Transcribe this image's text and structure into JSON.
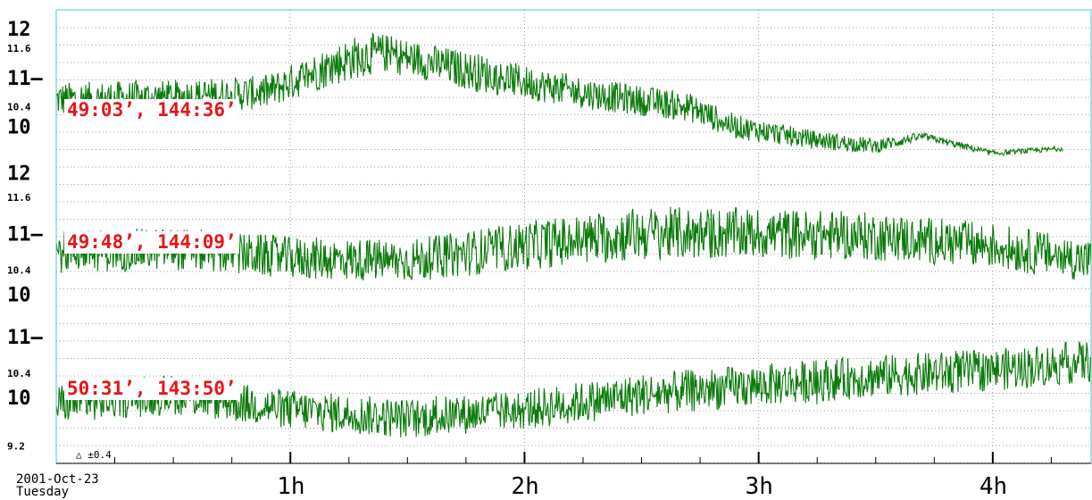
{
  "colors": {
    "trace": "#0a7a0a",
    "frame": "#4fc3c3",
    "grid": "#9aa0aa",
    "label_text": "#e8141b",
    "label_bg": "#ffffff"
  },
  "footer": {
    "date": "2001-Oct-23",
    "weekday": "Tuesday",
    "scale_note": "△ ±0.4"
  },
  "chart_data": {
    "type": "line",
    "x_unit": "hours",
    "xlim": [
      0,
      4.42
    ],
    "x_ticks": [
      {
        "value": 1,
        "label": "1h"
      },
      {
        "value": 2,
        "label": "2h"
      },
      {
        "value": 3,
        "label": "3h"
      },
      {
        "value": 4,
        "label": "4h"
      }
    ],
    "panels": [
      {
        "label": "49:03’, 144:36’",
        "ylim": [
          9.3,
          12.4
        ],
        "y_ticks": [
          {
            "value": 12,
            "label": "12",
            "size": "big"
          },
          {
            "value": 11.6,
            "label": "11.6",
            "size": "small"
          },
          {
            "value": 11,
            "label": "11–",
            "size": "big"
          },
          {
            "value": 10.4,
            "label": "10.4",
            "size": "small"
          },
          {
            "value": 10,
            "label": "10",
            "size": "big"
          }
        ],
        "series": [
          {
            "x": [
              0,
              0.5,
              0.9,
              1.1,
              1.3,
              1.4,
              1.6,
              1.8,
              2.0,
              2.3,
              2.7,
              2.9,
              3.2,
              3.5,
              3.7,
              4.0,
              4.3
            ],
            "y": [
              10.55,
              10.6,
              10.7,
              11.1,
              11.45,
              11.5,
              11.3,
              11.1,
              10.9,
              10.65,
              10.4,
              10.0,
              9.75,
              9.6,
              9.8,
              9.45,
              9.55
            ],
            "noise": [
              0.35,
              0.35,
              0.35,
              0.4,
              0.45,
              0.4,
              0.38,
              0.4,
              0.35,
              0.32,
              0.3,
              0.25,
              0.2,
              0.15,
              0.08,
              0.06,
              0.05
            ]
          }
        ]
      },
      {
        "label": "49:48’, 144:09’",
        "ylim": [
          9.7,
          12.2
        ],
        "y_ticks": [
          {
            "value": 12,
            "label": "12",
            "size": "big"
          },
          {
            "value": 11.6,
            "label": "11.6",
            "size": "small"
          },
          {
            "value": 11,
            "label": "11–",
            "size": "big"
          },
          {
            "value": 10.4,
            "label": "10.4",
            "size": "small"
          },
          {
            "value": 10,
            "label": "10",
            "size": "big"
          }
        ],
        "series": [
          {
            "x": [
              0,
              0.5,
              1.0,
              1.5,
              2.0,
              2.5,
              3.0,
              3.5,
              4.0,
              4.42
            ],
            "y": [
              10.7,
              10.75,
              10.6,
              10.55,
              10.8,
              11.0,
              11.0,
              10.95,
              10.8,
              10.55
            ],
            "noise": [
              0.35,
              0.35,
              0.35,
              0.35,
              0.4,
              0.45,
              0.42,
              0.4,
              0.38,
              0.35
            ]
          }
        ]
      },
      {
        "label": "50:31’, 143:50’",
        "ylim": [
          8.9,
          11.4
        ],
        "y_ticks": [
          {
            "value": 11,
            "label": "11–",
            "size": "big"
          },
          {
            "value": 10.4,
            "label": "10.4",
            "size": "small"
          },
          {
            "value": 10,
            "label": "10",
            "size": "big"
          },
          {
            "value": 9.2,
            "label": "9.2",
            "size": "small"
          }
        ],
        "series": [
          {
            "x": [
              0,
              0.5,
              1.0,
              1.5,
              2.0,
              2.5,
              3.0,
              3.5,
              4.0,
              4.42
            ],
            "y": [
              9.9,
              10.05,
              9.8,
              9.65,
              9.8,
              10.05,
              10.2,
              10.35,
              10.45,
              10.6
            ],
            "noise": [
              0.33,
              0.33,
              0.33,
              0.33,
              0.33,
              0.35,
              0.35,
              0.35,
              0.35,
              0.35
            ]
          }
        ]
      }
    ]
  }
}
